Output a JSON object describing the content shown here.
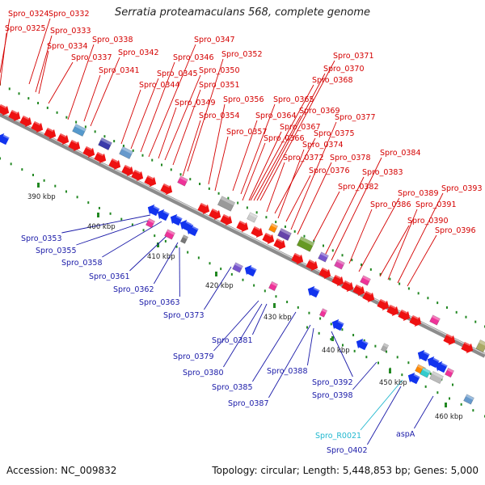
{
  "title": "Serratia proteamaculans 568, complete genome",
  "footer": {
    "accession": "Accession: NC_009832",
    "summary": "Topology: circular; Length: 5,448,853 bp; Genes: 5,000"
  },
  "colors": {
    "forward_label": "#d40000",
    "reverse_label": "#1a1aa8",
    "rna_label": "#21b8cf",
    "forward_gene": "#ee1111",
    "reverse_gene": "#1133ee",
    "backbone": "#8c8c8c",
    "tick": "#228822"
  },
  "scale_ticks": [
    "390 kbp",
    "400 kbp",
    "410 kbp",
    "420 kbp",
    "430 kbp",
    "440 kbp",
    "450 kbp",
    "460 kbp"
  ],
  "forward_labels": [
    "Spro_0324",
    "Spro_0325",
    "Spro_0332",
    "Spro_0333",
    "Spro_0334",
    "Spro_0337",
    "Spro_0338",
    "Spro_0341",
    "Spro_0342",
    "Spro_0344",
    "Spro_0345",
    "Spro_0346",
    "Spro_0347",
    "Spro_0349",
    "Spro_0350",
    "Spro_0351",
    "Spro_0352",
    "Spro_0354",
    "Spro_0356",
    "Spro_0357",
    "Spro_0364",
    "Spro_0365",
    "Spro_0366",
    "Spro_0367",
    "Spro_0368",
    "Spro_0369",
    "Spro_0370",
    "Spro_0371",
    "Spro_0372",
    "Spro_0374",
    "Spro_0375",
    "Spro_0376",
    "Spro_0377",
    "Spro_0378",
    "Spro_0382",
    "Spro_0383",
    "Spro_0384",
    "Spro_0386",
    "Spro_0389",
    "Spro_0390",
    "Spro_0391",
    "Spro_0393",
    "Spro_0396"
  ],
  "reverse_labels": [
    "Spro_0353",
    "Spro_0355",
    "Spro_0358",
    "Spro_0361",
    "Spro_0362",
    "Spro_0363",
    "Spro_0373",
    "Spro_0379",
    "Spro_0380",
    "Spro_0381",
    "Spro_0385",
    "Spro_0387",
    "Spro_0388",
    "Spro_0392",
    "Spro_0398",
    "Spro_R0021",
    "Spro_0402",
    "aspA"
  ]
}
